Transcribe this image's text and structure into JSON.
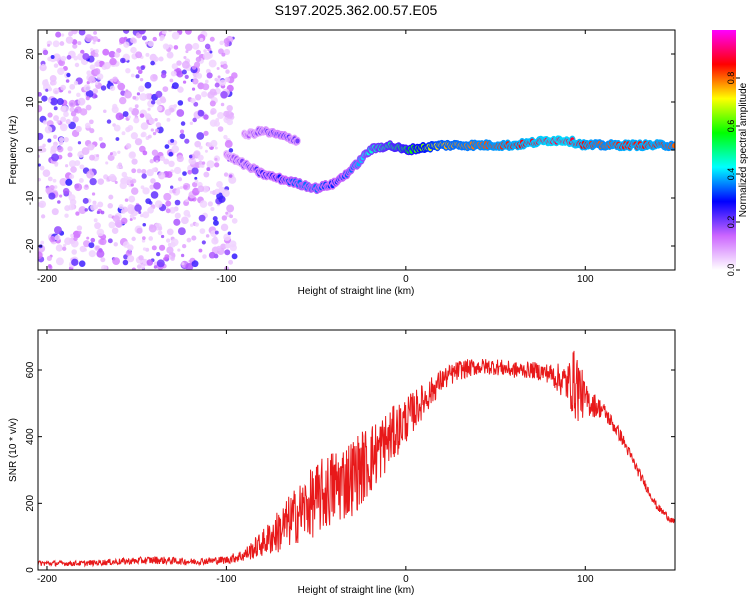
{
  "title": "S197.2025.362.00.57.E05",
  "colors": {
    "signal": "#e8191a",
    "axis": "#000000"
  },
  "chart_data": [
    {
      "type": "heatmap",
      "xlabel": "Height of straight line (km)",
      "ylabel": "Frequency (Hz)",
      "xlim": [
        -205,
        150
      ],
      "ylim": [
        -25,
        25
      ],
      "xticks": [
        -200,
        -100,
        0,
        100
      ],
      "yticks": [
        -20,
        -10,
        0,
        10,
        20
      ],
      "colorbar": {
        "label": "Normalized spectral amplitude",
        "range": [
          0,
          1
        ],
        "ticks": [
          0.0,
          0.2,
          0.4,
          0.6,
          0.8
        ],
        "tick_labels": [
          "0.0",
          "0.2",
          "0.4",
          "0.6",
          "0.8"
        ],
        "stops": [
          "#ffffff",
          "#cc66ff",
          "#0000ff",
          "#00ffff",
          "#00ff00",
          "#ffff00",
          "#ff0000",
          "#ff00ff"
        ]
      },
      "ridge": {
        "x": [
          -100,
          -90,
          -80,
          -70,
          -60,
          -50,
          -40,
          -30,
          -20,
          -10,
          0,
          20,
          40,
          60,
          80,
          90,
          100,
          110,
          120,
          140,
          150
        ],
        "frequency": [
          -1,
          -3,
          -5,
          -6,
          -7,
          -8,
          -7,
          -4,
          0,
          1,
          0,
          1,
          1,
          1,
          2,
          2,
          1,
          1,
          1,
          1,
          1
        ],
        "amplitude": [
          0.15,
          0.2,
          0.25,
          0.3,
          0.35,
          0.35,
          0.3,
          0.35,
          0.45,
          0.5,
          0.55,
          0.75,
          0.8,
          0.85,
          0.9,
          0.9,
          0.85,
          0.8,
          0.85,
          0.85,
          0.8
        ]
      },
      "upper_branch": {
        "x": [
          -90,
          -80,
          -70,
          -60
        ],
        "frequency": [
          3,
          4,
          3,
          2
        ],
        "amplitude": [
          0.15,
          0.2,
          0.25,
          0.2
        ]
      }
    },
    {
      "type": "line",
      "xlabel": "Height of straight line (km)",
      "ylabel": "SNR (10 * v/v)",
      "xlim": [
        -205,
        150
      ],
      "ylim": [
        0,
        720
      ],
      "xticks": [
        -200,
        -100,
        0,
        100
      ],
      "yticks": [
        0,
        200,
        400,
        600
      ],
      "series": [
        {
          "name": "SNR",
          "x": [
            -205,
            -180,
            -160,
            -140,
            -120,
            -100,
            -90,
            -80,
            -70,
            -60,
            -50,
            -40,
            -30,
            -20,
            -10,
            0,
            10,
            20,
            30,
            40,
            50,
            60,
            70,
            80,
            90,
            95,
            100,
            110,
            120,
            130,
            140,
            150
          ],
          "y": [
            20,
            20,
            25,
            30,
            25,
            30,
            45,
            80,
            120,
            170,
            210,
            250,
            280,
            330,
            390,
            450,
            510,
            570,
            600,
            610,
            610,
            600,
            600,
            590,
            560,
            560,
            510,
            480,
            400,
            290,
            190,
            140
          ],
          "noise_amplitude": [
            8,
            8,
            10,
            12,
            10,
            12,
            20,
            40,
            70,
            90,
            110,
            120,
            120,
            110,
            90,
            70,
            50,
            35,
            30,
            25,
            25,
            25,
            25,
            30,
            60,
            120,
            50,
            25,
            20,
            15,
            12,
            10
          ]
        }
      ]
    }
  ]
}
